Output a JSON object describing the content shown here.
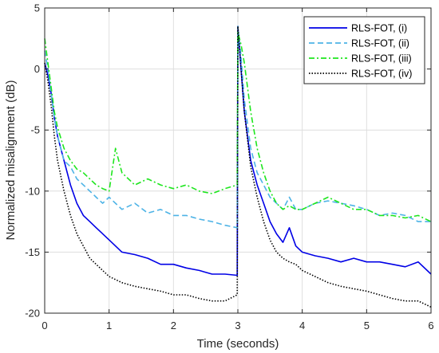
{
  "chart_data": {
    "type": "line",
    "title": "",
    "xlabel": "Time (seconds)",
    "ylabel": "Normalized misalignment (dB)",
    "xlim": [
      0,
      6
    ],
    "ylim": [
      -20,
      5
    ],
    "xticks": [
      0,
      1,
      2,
      3,
      4,
      5,
      6
    ],
    "yticks": [
      5,
      0,
      -5,
      -10,
      -15,
      -20
    ],
    "grid": true,
    "legend_position": "top-right",
    "series": [
      {
        "name": "RLS-FOT, (i)",
        "color": "#0000e6",
        "dash": "solid",
        "x": [
          0,
          0.05,
          0.1,
          0.15,
          0.2,
          0.3,
          0.4,
          0.5,
          0.6,
          0.7,
          0.8,
          0.9,
          1.0,
          1.2,
          1.4,
          1.6,
          1.8,
          2.0,
          2.2,
          2.4,
          2.6,
          2.8,
          2.99,
          3.0,
          3.05,
          3.1,
          3.2,
          3.3,
          3.4,
          3.5,
          3.6,
          3.7,
          3.8,
          3.9,
          4.0,
          4.2,
          4.4,
          4.6,
          4.8,
          5.0,
          5.2,
          5.4,
          5.6,
          5.8,
          6.0
        ],
        "y": [
          0.5,
          -0.5,
          -2.0,
          -4.0,
          -5.5,
          -7.5,
          -9.5,
          -11.0,
          -12.0,
          -12.5,
          -13.0,
          -13.5,
          -14.0,
          -15.0,
          -15.2,
          -15.5,
          -16.0,
          -16.0,
          -16.3,
          -16.5,
          -16.8,
          -16.8,
          -16.9,
          3.5,
          0.0,
          -3.5,
          -7.5,
          -9.5,
          -11.0,
          -12.5,
          -13.5,
          -14.2,
          -13.0,
          -14.5,
          -15.0,
          -15.3,
          -15.5,
          -15.8,
          -15.5,
          -15.8,
          -15.8,
          -16.0,
          -16.2,
          -15.8,
          -16.8
        ]
      },
      {
        "name": "RLS-FOT, (ii)",
        "color": "#4db3e6",
        "dash": "dashed",
        "x": [
          0,
          0.05,
          0.1,
          0.15,
          0.2,
          0.3,
          0.4,
          0.5,
          0.6,
          0.7,
          0.8,
          0.9,
          1.0,
          1.2,
          1.4,
          1.6,
          1.8,
          2.0,
          2.2,
          2.4,
          2.6,
          2.8,
          2.99,
          3.0,
          3.05,
          3.1,
          3.2,
          3.3,
          3.4,
          3.5,
          3.6,
          3.7,
          3.8,
          3.9,
          4.0,
          4.2,
          4.4,
          4.6,
          4.8,
          5.0,
          5.2,
          5.4,
          5.6,
          5.8,
          6.0
        ],
        "y": [
          1.5,
          0.0,
          -2.0,
          -4.0,
          -5.5,
          -7.5,
          -8.0,
          -9.0,
          -9.5,
          -10.0,
          -10.5,
          -11.0,
          -10.5,
          -11.5,
          -11.0,
          -11.8,
          -11.5,
          -12.0,
          -12.0,
          -12.3,
          -12.5,
          -12.8,
          -13.0,
          3.5,
          1.0,
          -2.5,
          -6.5,
          -8.5,
          -9.5,
          -10.5,
          -11.0,
          -11.5,
          -10.5,
          -11.5,
          -11.5,
          -11.0,
          -10.8,
          -11.0,
          -11.2,
          -11.5,
          -12.0,
          -11.8,
          -12.0,
          -12.5,
          -12.5
        ]
      },
      {
        "name": "RLS-FOT, (iii)",
        "color": "#1ee61e",
        "dash": "dashdot",
        "x": [
          0,
          0.05,
          0.1,
          0.15,
          0.2,
          0.3,
          0.4,
          0.5,
          0.6,
          0.7,
          0.8,
          0.9,
          1.0,
          1.1,
          1.2,
          1.4,
          1.6,
          1.8,
          2.0,
          2.2,
          2.4,
          2.6,
          2.8,
          2.99,
          3.0,
          3.05,
          3.1,
          3.2,
          3.3,
          3.4,
          3.5,
          3.6,
          3.7,
          3.8,
          3.9,
          4.0,
          4.2,
          4.4,
          4.6,
          4.8,
          5.0,
          5.2,
          5.4,
          5.6,
          5.8,
          6.0
        ],
        "y": [
          2.5,
          0.5,
          -1.5,
          -3.5,
          -4.8,
          -6.5,
          -7.5,
          -8.2,
          -8.5,
          -9.0,
          -9.5,
          -9.8,
          -10.0,
          -6.5,
          -8.5,
          -9.5,
          -9.0,
          -9.5,
          -9.8,
          -9.5,
          -10.0,
          -10.2,
          -9.8,
          -9.5,
          3.0,
          2.0,
          0.5,
          -3.5,
          -6.5,
          -8.5,
          -10.0,
          -11.0,
          -11.5,
          -11.2,
          -11.5,
          -11.5,
          -11.0,
          -10.5,
          -11.0,
          -11.5,
          -11.5,
          -12.0,
          -12.0,
          -12.2,
          -12.0,
          -12.5
        ]
      },
      {
        "name": "RLS-FOT, (iv)",
        "color": "#000000",
        "dash": "dotted",
        "x": [
          0,
          0.05,
          0.1,
          0.15,
          0.2,
          0.3,
          0.4,
          0.5,
          0.6,
          0.7,
          0.8,
          0.9,
          1.0,
          1.2,
          1.4,
          1.6,
          1.8,
          2.0,
          2.2,
          2.4,
          2.6,
          2.8,
          2.99,
          3.0,
          3.05,
          3.1,
          3.2,
          3.3,
          3.4,
          3.5,
          3.6,
          3.7,
          3.8,
          3.9,
          4.0,
          4.2,
          4.4,
          4.6,
          4.8,
          5.0,
          5.2,
          5.4,
          5.6,
          5.8,
          6.0
        ],
        "y": [
          0.5,
          -1.0,
          -3.0,
          -5.5,
          -7.5,
          -10.0,
          -12.0,
          -13.5,
          -14.5,
          -15.5,
          -16.0,
          -16.5,
          -17.0,
          -17.5,
          -17.8,
          -18.0,
          -18.2,
          -18.5,
          -18.5,
          -18.8,
          -19.0,
          -19.0,
          -18.5,
          3.5,
          0.0,
          -3.5,
          -8.0,
          -10.5,
          -12.5,
          -14.0,
          -15.0,
          -15.5,
          -15.8,
          -16.0,
          -16.5,
          -17.0,
          -17.5,
          -17.8,
          -18.0,
          -18.2,
          -18.5,
          -18.8,
          -19.0,
          -19.0,
          -19.5
        ]
      }
    ]
  }
}
